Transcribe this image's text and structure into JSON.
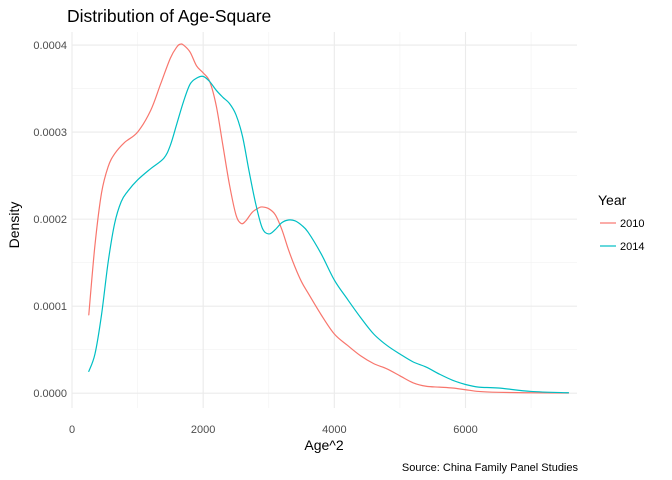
{
  "chart_data": {
    "type": "line",
    "title": "Distribution of Age-Square",
    "xlabel": "Age^2",
    "ylabel": "Density",
    "caption": "Source: China Family Panel Studies",
    "xlim": [
      0,
      7700
    ],
    "ylim": [
      -1.7e-05,
      0.000415
    ],
    "x_ticks": [
      0,
      2000,
      4000,
      6000
    ],
    "x_tick_labels": [
      "0",
      "2000",
      "4000",
      "6000"
    ],
    "y_ticks": [
      0,
      0.0001,
      0.0002,
      0.0003,
      0.0004
    ],
    "y_tick_labels": [
      "0.0000",
      "0.0001",
      "0.0002",
      "0.0003",
      "0.0004"
    ],
    "grid": true,
    "legend": {
      "title": "Year",
      "position": "right"
    },
    "series": [
      {
        "name": "2010",
        "color": "#F8766D",
        "x": [
          256,
          350,
          450,
          550,
          650,
          800,
          1000,
          1200,
          1350,
          1500,
          1600,
          1650,
          1700,
          1800,
          1900,
          2000,
          2100,
          2200,
          2300,
          2400,
          2500,
          2580,
          2650,
          2750,
          2850,
          2900,
          3000,
          3100,
          3200,
          3300,
          3400,
          3500,
          3600,
          3800,
          4000,
          4200,
          4400,
          4600,
          4800,
          5000,
          5200,
          5400,
          5600,
          5800,
          6000,
          6200,
          6500,
          7000,
          7570
        ],
        "y": [
          9e-05,
          0.00017,
          0.00023,
          0.00026,
          0.000275,
          0.000288,
          0.0003,
          0.000325,
          0.000355,
          0.000385,
          0.000398,
          0.000401,
          0.0004,
          0.000392,
          0.000376,
          0.000368,
          0.000358,
          0.00033,
          0.000285,
          0.00024,
          0.000205,
          0.000195,
          0.000198,
          0.000208,
          0.000213,
          0.000214,
          0.000212,
          0.000205,
          0.000188,
          0.000165,
          0.000145,
          0.000128,
          0.000115,
          9e-05,
          6.8e-05,
          5.5e-05,
          4.3e-05,
          3.4e-05,
          2.8e-05,
          2e-05,
          1.2e-05,
          8e-06,
          7e-06,
          6e-06,
          4e-06,
          2e-06,
          1e-06,
          5e-07,
          2e-07
        ]
      },
      {
        "name": "2014",
        "color": "#00BFC4",
        "x": [
          256,
          350,
          450,
          550,
          650,
          750,
          850,
          1000,
          1200,
          1400,
          1500,
          1600,
          1700,
          1800,
          1900,
          2000,
          2100,
          2200,
          2300,
          2400,
          2500,
          2600,
          2700,
          2800,
          2900,
          3000,
          3100,
          3200,
          3300,
          3400,
          3500,
          3600,
          3800,
          4000,
          4200,
          4400,
          4600,
          4800,
          5000,
          5200,
          5400,
          5600,
          5800,
          6000,
          6200,
          6500,
          7000,
          7570
        ],
        "y": [
          2.5e-05,
          4.5e-05,
          9e-05,
          0.00015,
          0.000195,
          0.00022,
          0.000232,
          0.000245,
          0.000258,
          0.00027,
          0.000285,
          0.00031,
          0.000335,
          0.000355,
          0.000362,
          0.000364,
          0.000358,
          0.000348,
          0.00034,
          0.000333,
          0.00032,
          0.000295,
          0.000255,
          0.000218,
          0.00019,
          0.000183,
          0.000188,
          0.000196,
          0.000199,
          0.000198,
          0.000193,
          0.000185,
          0.00016,
          0.00013,
          0.000108,
          8.7e-05,
          6.8e-05,
          5.5e-05,
          4.5e-05,
          3.6e-05,
          3e-05,
          2.2e-05,
          1.5e-05,
          1e-05,
          7e-06,
          6e-06,
          2e-06,
          5e-07
        ]
      }
    ]
  }
}
